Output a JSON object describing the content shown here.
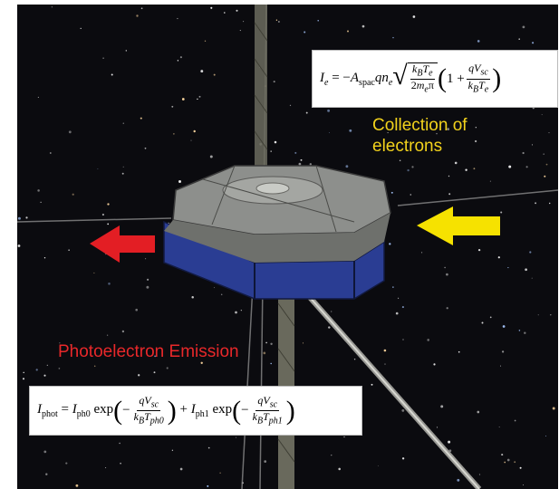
{
  "labels": {
    "collection_line1": "Collection of",
    "collection_line2": "electrons",
    "photoemission": "Photoelectron Emission"
  },
  "formulas": {
    "electron_current": "I_e = -A_spac q n_e sqrt(k_B T_e / (2 m_e π)) (1 + qV_sc / (k_B T_e))",
    "photo_current": "I_phot = I_ph0 exp(-qV_sc / (k_B T_ph0)) + I_ph1 exp(-qV_sc / (k_B T_ph1))"
  },
  "colors": {
    "background": "#0b0b0f",
    "collection_arrow": "#f6e200",
    "emission_arrow": "#e31e24",
    "collection_text": "#f2d21c",
    "emission_text": "#e8282a",
    "panels": "#27388a"
  },
  "icons": {
    "left_arrow": "red-arrow-left-icon",
    "right_arrow": "yellow-arrow-left-icon"
  }
}
